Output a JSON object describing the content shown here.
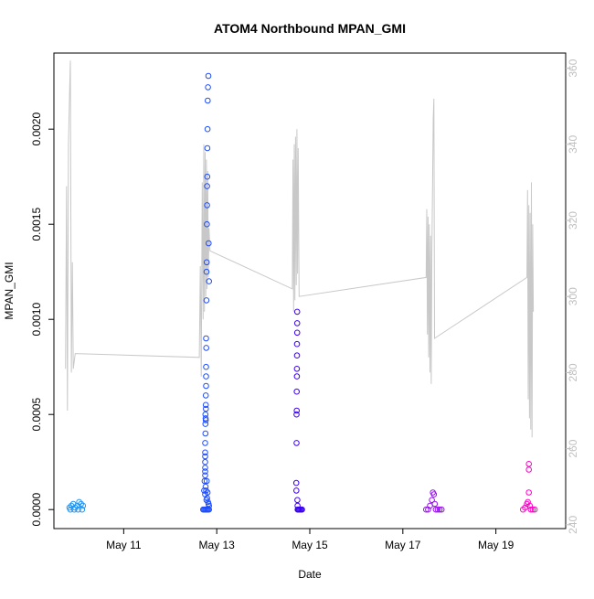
{
  "chart_data": {
    "type": "scatter",
    "title": "ATOM4 Northbound MPAN_GMI",
    "xlabel": "Date",
    "ylabel": "MPAN_GMI",
    "x_ticks": [
      "May 11",
      "May 13",
      "May 15",
      "May 17",
      "May 19"
    ],
    "y_ticks": [
      "0.0000",
      "0.0005",
      "0.0010",
      "0.0015",
      "0.0020"
    ],
    "y2_ticks": [
      "240",
      "260",
      "280",
      "300",
      "320",
      "340",
      "360"
    ],
    "xlim": [
      "2016-05-09T12:00",
      "2016-05-20T12:00"
    ],
    "ylim": [
      -0.0001,
      0.0024
    ],
    "y2lim": [
      239,
      364
    ],
    "grid": false,
    "legend": "none",
    "colors": {
      "line": "#c8c8c8",
      "axis": "#000000",
      "y2_axis": "#c0c0c0",
      "series": [
        "#2196f3",
        "#1e4dff",
        "#3b00f0",
        "#9a10f0",
        "#ff00c8"
      ]
    },
    "series": [
      {
        "x": [
          "2016-05-09T20:00",
          "2016-05-09T21:00",
          "2016-05-09T22:00",
          "2016-05-09T23:00",
          "2016-05-10T00:00",
          "2016-05-10T01:00",
          "2016-05-10T02:00",
          "2016-05-10T03:00",
          "2016-05-09T20:30",
          "2016-05-09T22:30",
          "2016-05-10T00:30",
          "2016-05-10T02:30"
        ],
        "y": [
          1e-05,
          2e-05,
          3e-05,
          1e-05,
          2e-05,
          4e-05,
          3e-05,
          2e-05,
          0.0,
          0.0,
          0.0,
          0.0
        ]
      },
      {
        "x": [
          "2016-05-12T17:30",
          "2016-05-12T17:45",
          "2016-05-12T18:00",
          "2016-05-12T18:00",
          "2016-05-12T18:00",
          "2016-05-12T18:00",
          "2016-05-12T18:00",
          "2016-05-12T18:00",
          "2016-05-12T18:00",
          "2016-05-12T18:10",
          "2016-05-12T18:10",
          "2016-05-12T18:10",
          "2016-05-12T18:15",
          "2016-05-12T18:20",
          "2016-05-12T18:20",
          "2016-05-12T18:20",
          "2016-05-12T18:25",
          "2016-05-12T18:30",
          "2016-05-12T18:30",
          "2016-05-12T18:30",
          "2016-05-12T18:30",
          "2016-05-12T18:35",
          "2016-05-12T18:40",
          "2016-05-12T18:45",
          "2016-05-12T18:50",
          "2016-05-12T18:55",
          "2016-05-12T19:00",
          "2016-05-12T19:00",
          "2016-05-12T19:05",
          "2016-05-12T19:10",
          "2016-05-12T19:15",
          "2016-05-12T19:20",
          "2016-05-12T19:30",
          "2016-05-12T19:40",
          "2016-05-12T19:50",
          "2016-05-12T20:00",
          "2016-05-12T18:00",
          "2016-05-12T18:15",
          "2016-05-12T18:30",
          "2016-05-12T18:40",
          "2016-05-12T18:50",
          "2016-05-12T19:00",
          "2016-05-12T19:15",
          "2016-05-12T19:30",
          "2016-05-12T19:45",
          "2016-05-12T20:00",
          "2016-05-12T17:00",
          "2016-05-12T17:30",
          "2016-05-12T18:00",
          "2016-05-12T18:30",
          "2016-05-12T19:00",
          "2016-05-12T19:30",
          "2016-05-12T20:00"
        ],
        "y": [
          0.0001,
          0.00015,
          0.0002,
          0.00025,
          0.0003,
          0.00035,
          0.00028,
          0.00022,
          0.00018,
          0.0004,
          0.00045,
          0.0005,
          0.00048,
          0.00055,
          0.0006,
          0.00047,
          0.00053,
          0.00065,
          0.0007,
          0.00075,
          0.0009,
          0.00085,
          0.0011,
          0.00125,
          0.0013,
          0.0015,
          0.0016,
          0.0017,
          0.00175,
          0.0019,
          0.002,
          0.00215,
          0.00222,
          0.00228,
          0.0014,
          0.0012,
          8e-05,
          0.00012,
          0.0001,
          5e-05,
          0.00015,
          6e-05,
          9e-05,
          4e-05,
          3e-05,
          2e-05,
          0.0,
          0.0,
          0.0,
          0.0,
          0.0,
          0.0,
          0.0
        ]
      },
      {
        "x": [
          "2016-05-14T17:00",
          "2016-05-14T17:05",
          "2016-05-14T17:10",
          "2016-05-14T17:10",
          "2016-05-14T17:15",
          "2016-05-14T17:15",
          "2016-05-14T17:20",
          "2016-05-14T17:20",
          "2016-05-14T17:25",
          "2016-05-14T17:25",
          "2016-05-14T17:30",
          "2016-05-14T17:30",
          "2016-05-14T17:30",
          "2016-05-14T17:35",
          "2016-05-14T17:40",
          "2016-05-14T17:45",
          "2016-05-14T18:00",
          "2016-05-14T18:30",
          "2016-05-14T19:00",
          "2016-05-14T19:30",
          "2016-05-14T20:00"
        ],
        "y": [
          0.00014,
          0.0001,
          0.00035,
          0.0005,
          0.00052,
          0.00062,
          0.0007,
          0.00074,
          0.00081,
          0.00087,
          0.00093,
          0.00098,
          0.00104,
          5e-05,
          2e-05,
          0.0,
          0.0,
          0.0,
          0.0,
          0.0,
          0.0
        ]
      },
      {
        "x": [
          "2016-05-17T12:00",
          "2016-05-17T13:00",
          "2016-05-17T14:00",
          "2016-05-17T15:00",
          "2016-05-17T15:30",
          "2016-05-17T16:00",
          "2016-05-17T16:30",
          "2016-05-17T17:00",
          "2016-05-17T18:00",
          "2016-05-17T19:00",
          "2016-05-17T20:00"
        ],
        "y": [
          0.0,
          0.0,
          2e-05,
          5e-05,
          9e-05,
          8e-05,
          3e-05,
          0.0,
          0.0,
          0.0,
          0.0
        ]
      },
      {
        "x": [
          "2016-05-19T14:00",
          "2016-05-19T15:00",
          "2016-05-19T16:00",
          "2016-05-19T16:30",
          "2016-05-19T17:00",
          "2016-05-19T17:00",
          "2016-05-19T17:00",
          "2016-05-19T17:30",
          "2016-05-19T18:00",
          "2016-05-19T19:00",
          "2016-05-19T20:00"
        ],
        "y": [
          0.0,
          1e-05,
          3e-05,
          4e-05,
          9e-05,
          0.00021,
          0.00024,
          2e-05,
          0.0,
          0.0,
          0.0
        ]
      }
    ],
    "line_series": [
      [
        "2016-05-09T18:00",
        281
      ],
      [
        "2016-05-09T18:30",
        329
      ],
      [
        "2016-05-09T19:00",
        270
      ],
      [
        "2016-05-09T19:30",
        340
      ],
      [
        "2016-05-09T20:00",
        352
      ],
      [
        "2016-05-09T20:30",
        362
      ],
      [
        "2016-05-09T21:00",
        280
      ],
      [
        "2016-05-09T21:30",
        309
      ],
      [
        "2016-05-09T22:00",
        281
      ],
      [
        "2016-05-09T23:00",
        285
      ],
      [
        "2016-05-12T15:00",
        284
      ],
      [
        "2016-05-12T15:30",
        308
      ],
      [
        "2016-05-12T16:00",
        279
      ],
      [
        "2016-05-12T16:30",
        330
      ],
      [
        "2016-05-12T17:00",
        294
      ],
      [
        "2016-05-12T17:20",
        340
      ],
      [
        "2016-05-12T17:40",
        296
      ],
      [
        "2016-05-12T18:00",
        338
      ],
      [
        "2016-05-12T18:20",
        300
      ],
      [
        "2016-05-12T18:40",
        336
      ],
      [
        "2016-05-12T19:00",
        302
      ],
      [
        "2016-05-12T19:20",
        333
      ],
      [
        "2016-05-12T19:40",
        305
      ],
      [
        "2016-05-12T20:00",
        318
      ],
      [
        "2016-05-12T20:30",
        312
      ],
      [
        "2016-05-14T15:00",
        302
      ],
      [
        "2016-05-14T15:20",
        336
      ],
      [
        "2016-05-14T15:40",
        296
      ],
      [
        "2016-05-14T16:00",
        340
      ],
      [
        "2016-05-14T16:20",
        299
      ],
      [
        "2016-05-14T16:40",
        342
      ],
      [
        "2016-05-14T17:00",
        303
      ],
      [
        "2016-05-14T17:20",
        344
      ],
      [
        "2016-05-14T17:40",
        306
      ],
      [
        "2016-05-14T18:00",
        339
      ],
      [
        "2016-05-14T18:30",
        300
      ],
      [
        "2016-05-17T12:00",
        305
      ],
      [
        "2016-05-17T12:20",
        323
      ],
      [
        "2016-05-17T12:40",
        290
      ],
      [
        "2016-05-17T13:00",
        321
      ],
      [
        "2016-05-17T13:20",
        284
      ],
      [
        "2016-05-17T13:40",
        319
      ],
      [
        "2016-05-17T14:00",
        280
      ],
      [
        "2016-05-17T14:20",
        316
      ],
      [
        "2016-05-17T14:40",
        277
      ],
      [
        "2016-05-17T15:00",
        312
      ],
      [
        "2016-05-17T15:40",
        347
      ],
      [
        "2016-05-17T16:00",
        352
      ],
      [
        "2016-05-17T16:20",
        289
      ],
      [
        "2016-05-19T16:00",
        305
      ],
      [
        "2016-05-19T16:20",
        328
      ],
      [
        "2016-05-19T16:40",
        273
      ],
      [
        "2016-05-19T17:00",
        324
      ],
      [
        "2016-05-19T17:20",
        268
      ],
      [
        "2016-05-19T17:40",
        322
      ],
      [
        "2016-05-19T18:00",
        265
      ],
      [
        "2016-05-19T18:20",
        330
      ],
      [
        "2016-05-19T18:40",
        263
      ],
      [
        "2016-05-19T19:00",
        319
      ],
      [
        "2016-05-19T19:20",
        296
      ]
    ]
  }
}
